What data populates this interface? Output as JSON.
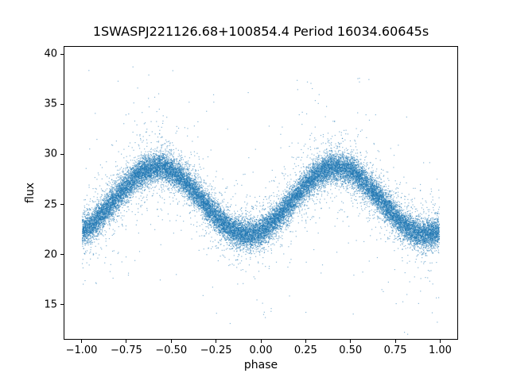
{
  "figure": {
    "background": "#ffffff"
  },
  "chart_data": {
    "type": "scatter",
    "title": "1SWASPJ221126.68+100854.4 Period 16034.60645s",
    "xlabel": "phase",
    "ylabel": "flux",
    "xlim": [
      -1.1,
      1.1
    ],
    "ylim": [
      11.5,
      40.8
    ],
    "xticks": [
      -1.0,
      -0.75,
      -0.5,
      -0.25,
      0.0,
      0.25,
      0.5,
      0.75,
      1.0
    ],
    "xtick_labels": [
      "−1.00",
      "−0.75",
      "−0.50",
      "−0.25",
      "0.00",
      "0.25",
      "0.50",
      "0.75",
      "1.00"
    ],
    "yticks": [
      15,
      20,
      25,
      30,
      35,
      40
    ],
    "ytick_labels": [
      "15",
      "20",
      "25",
      "30",
      "35",
      "40"
    ],
    "grid": false,
    "legend": null,
    "marker_color": "#1f77b4",
    "marker_alpha": 0.5,
    "marker_size_px": 1.2,
    "n_points": 26000,
    "noise": {
      "sigma_core": 0.7,
      "sigma_mid": 1.8,
      "mid_fraction": 0.12,
      "sigma_outlier": 5.0,
      "outlier_fraction": 0.02
    },
    "mean_curve": {
      "comment": "phase-folded light curve; two maxima ~28.7 at phase -0.6 and +0.4, minima ~22 at phase ~0 and ~±0.9-1.0",
      "phase": [
        -1.0,
        -0.95,
        -0.9,
        -0.85,
        -0.8,
        -0.75,
        -0.7,
        -0.65,
        -0.6,
        -0.55,
        -0.5,
        -0.45,
        -0.4,
        -0.35,
        -0.3,
        -0.25,
        -0.2,
        -0.15,
        -0.1,
        -0.05,
        0.0,
        0.05,
        0.1,
        0.15,
        0.2,
        0.25,
        0.3,
        0.35,
        0.4,
        0.45,
        0.5,
        0.55,
        0.6,
        0.65,
        0.7,
        0.75,
        0.8,
        0.85,
        0.9,
        0.95,
        1.0
      ],
      "flux": [
        22.32,
        22.95,
        23.81,
        24.82,
        25.88,
        26.89,
        27.75,
        28.38,
        28.71,
        28.71,
        28.38,
        27.75,
        26.89,
        25.88,
        24.82,
        23.81,
        22.95,
        22.32,
        21.99,
        21.99,
        22.32,
        22.95,
        23.81,
        24.82,
        25.88,
        26.89,
        27.75,
        28.38,
        28.71,
        28.71,
        28.38,
        27.75,
        26.89,
        25.88,
        24.82,
        23.81,
        22.95,
        22.32,
        21.99,
        21.99,
        22.32
      ]
    }
  }
}
